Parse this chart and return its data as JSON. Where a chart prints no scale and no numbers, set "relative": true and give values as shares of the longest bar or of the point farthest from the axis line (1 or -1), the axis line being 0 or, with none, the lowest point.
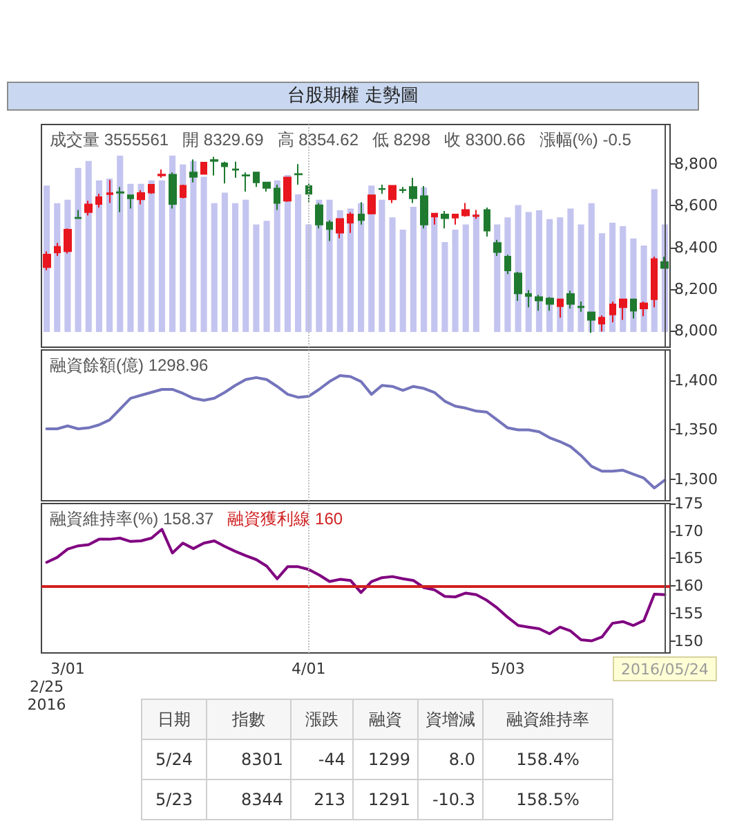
{
  "chart_data": [
    {
      "type": "bar",
      "relative": true,
      "title": "台股期權 走勢圖",
      "categories": [
        "2/25\n2016",
        null,
        "3/01",
        null,
        null,
        null,
        null,
        null,
        null,
        null,
        null,
        null,
        null,
        null,
        null,
        null,
        null,
        null,
        null,
        null,
        null,
        null,
        null,
        null,
        null,
        "4/01",
        null,
        null,
        null,
        null,
        null,
        null,
        null,
        null,
        null,
        null,
        null,
        null,
        null,
        null,
        null,
        null,
        null,
        null,
        "5/03",
        null,
        null,
        null,
        null,
        null,
        null,
        null,
        null,
        null,
        null,
        null,
        null,
        null,
        null,
        "2016/05/24"
      ],
      "color": "#c4c4f0",
      "values": [
        0.83,
        0.73,
        0.75,
        0.93,
        0.97,
        0.86,
        0.87,
        1,
        0.84,
        0.84,
        0.86,
        0.86,
        1,
        0.95,
        0.97,
        0.88,
        0.73,
        0.79,
        0.73,
        0.75,
        0.61,
        0.63,
        0.86,
        0.89,
        0.78,
        0.61,
        0.75,
        0.75,
        0.69,
        0.7,
        0.73,
        0.83,
        0.75,
        0.65,
        0.58,
        0.71,
        0.82,
        0.65,
        0.51,
        0.58,
        0.61,
        0.67,
        null,
        0.61,
        0.65,
        0.72,
        0.68,
        0.69,
        0.64,
        0.65,
        0.7,
        0.61,
        0.73,
        0.56,
        0.62,
        0.6,
        0.53,
        0.49,
        0.81,
        0.61
      ],
      "tick_labels": false
    },
    {
      "type": "candlestick",
      "annotations": [
        "成交量 3555561",
        "開 8329.69",
        "高 8354.62",
        "低 8298",
        "收 8300.66",
        "漲幅(%) -0.5"
      ],
      "categories": [
        "2/25\n2016",
        null,
        "3/01",
        null,
        null,
        null,
        null,
        null,
        null,
        null,
        null,
        null,
        null,
        null,
        null,
        null,
        null,
        null,
        null,
        null,
        null,
        null,
        null,
        null,
        null,
        "4/01",
        null,
        null,
        null,
        null,
        null,
        null,
        null,
        null,
        null,
        null,
        null,
        null,
        null,
        null,
        null,
        null,
        null,
        null,
        "5/03",
        null,
        null,
        null,
        null,
        null,
        null,
        null,
        null,
        null,
        null,
        null,
        null,
        null,
        null,
        "2016/05/24"
      ],
      "ohlc": [
        [
          8305,
          8380,
          8290,
          8365
        ],
        [
          8375,
          8421,
          8359,
          8403
        ],
        [
          8381,
          8491,
          8370,
          8485
        ],
        [
          8542,
          8580,
          8538,
          8540
        ],
        [
          8569,
          8624,
          8553,
          8606
        ],
        [
          8608,
          8657,
          8591,
          8641
        ],
        [
          8655,
          8723,
          8613,
          8660
        ],
        [
          8665,
          8690,
          8569,
          8662
        ],
        [
          8650,
          8652,
          8586,
          8635
        ],
        [
          8630,
          8674,
          8606,
          8661
        ],
        [
          8663,
          8701,
          8657,
          8701
        ],
        [
          8745,
          8774,
          8734,
          8750
        ],
        [
          8749,
          8760,
          8586,
          8608
        ],
        [
          8641,
          8701,
          8635,
          8696
        ],
        [
          8760,
          8822,
          8712,
          8738
        ],
        [
          8752,
          8810,
          8750,
          8807
        ],
        [
          8820,
          8835,
          8745,
          8815
        ],
        [
          8804,
          8811,
          8707,
          8789
        ],
        [
          8775,
          8811,
          8734,
          8772
        ],
        [
          8747,
          8760,
          8668,
          8744
        ],
        [
          8760,
          8760,
          8690,
          8712
        ],
        [
          8712,
          8712,
          8668,
          8685
        ],
        [
          8683,
          8701,
          8580,
          8613
        ],
        [
          8624,
          8736,
          8619,
          8736
        ],
        [
          8752,
          8800,
          8701,
          8750
        ],
        [
          8694,
          8712,
          8619,
          8657
        ],
        [
          8602,
          8613,
          8491,
          8509
        ],
        [
          8520,
          8531,
          8430,
          8487
        ],
        [
          8470,
          8536,
          8443,
          8536
        ],
        [
          8518,
          8569,
          8469,
          8558
        ],
        [
          8558,
          8617,
          8509,
          8531
        ],
        [
          8562,
          8650,
          8558,
          8650
        ],
        [
          8681,
          8701,
          8657,
          8679
        ],
        [
          8630,
          8696,
          8613,
          8696
        ],
        [
          8676,
          8690,
          8660,
          8674
        ],
        [
          8690,
          8734,
          8613,
          8635
        ],
        [
          8646,
          8694,
          8491,
          8509
        ],
        [
          8547,
          8562,
          8509,
          8562
        ],
        [
          8558,
          8575,
          8491,
          8540
        ],
        [
          8542,
          8558,
          8509,
          8558
        ],
        [
          8553,
          8613,
          8547,
          8580
        ],
        [
          8550,
          8580,
          8536,
          8553
        ],
        [
          8580,
          8591,
          8452,
          8480
        ],
        [
          8421,
          8436,
          8359,
          8377
        ],
        [
          8355,
          8364,
          8271,
          8289
        ],
        [
          8275,
          8282,
          8143,
          8178
        ],
        [
          8176,
          8194,
          8112,
          8166
        ],
        [
          8161,
          8172,
          8095,
          8144
        ],
        [
          8154,
          8161,
          8095,
          8128
        ],
        [
          8117,
          8150,
          8062,
          8150
        ],
        [
          8176,
          8192,
          8106,
          8128
        ],
        [
          8115,
          8139,
          8090,
          8112
        ],
        [
          8088,
          8088,
          7989,
          8051
        ],
        [
          8033,
          8073,
          7996,
          8062
        ],
        [
          8077,
          8139,
          8040,
          8126
        ],
        [
          8112,
          8150,
          8051,
          8150
        ],
        [
          8150,
          8150,
          8058,
          8095
        ],
        [
          8106,
          8139,
          8069,
          8131
        ],
        [
          8150,
          8355,
          8112,
          8344
        ],
        [
          8329.69,
          8354.62,
          8298,
          8300.66
        ]
      ],
      "colors": [
        "#e8161e",
        "#e8161e",
        "#e8161e",
        "#1f7a2f",
        "#e8161e",
        "#e8161e",
        "#e8161e",
        "#1f7a2f",
        "#1f7a2f",
        "#e8161e",
        "#e8161e",
        "#e8161e",
        "#1f7a2f",
        "#e8161e",
        "#1f7a2f",
        "#e8161e",
        "#1f7a2f",
        "#1f7a2f",
        "#1f7a2f",
        "#1f7a2f",
        "#1f7a2f",
        "#1f7a2f",
        "#1f7a2f",
        "#e8161e",
        "#1f7a2f",
        "#1f7a2f",
        "#1f7a2f",
        "#1f7a2f",
        "#e8161e",
        "#e8161e",
        "#1f7a2f",
        "#e8161e",
        "#1f7a2f",
        "#e8161e",
        "#1f7a2f",
        "#1f7a2f",
        "#1f7a2f",
        "#e8161e",
        "#1f7a2f",
        "#e8161e",
        "#e8161e",
        "#e8161e",
        "#1f7a2f",
        "#1f7a2f",
        "#1f7a2f",
        "#1f7a2f",
        "#1f7a2f",
        "#1f7a2f",
        "#1f7a2f",
        "#e8161e",
        "#1f7a2f",
        "#1f7a2f",
        "#1f7a2f",
        "#e8161e",
        "#e8161e",
        "#e8161e",
        "#1f7a2f",
        "#e8161e",
        "#e8161e",
        "#1f7a2f"
      ],
      "ylim": [
        7920,
        8990
      ],
      "yticks": [
        {
          "value": 8000,
          "label": "8,000"
        },
        {
          "value": 8200,
          "label": "8,200"
        },
        {
          "value": 8400,
          "label": "8,400"
        },
        {
          "value": 8600,
          "label": "8,600"
        },
        {
          "value": 8800,
          "label": "8,800"
        }
      ],
      "ref_lines": [
        {
          "axis": "x",
          "value": "4/01",
          "color": "#c0c0c0",
          "line_style": "dotted"
        },
        {
          "axis": "x",
          "value": "2016/05/24",
          "color": "#505050"
        }
      ],
      "tick_labels": "y"
    },
    {
      "type": "line",
      "annotations": [
        "融資餘額(億) 1298.96"
      ],
      "categories": [
        "2/25\n2016",
        null,
        "3/01",
        null,
        null,
        null,
        null,
        null,
        null,
        null,
        null,
        null,
        null,
        null,
        null,
        null,
        null,
        null,
        null,
        null,
        null,
        null,
        null,
        null,
        null,
        "4/01",
        null,
        null,
        null,
        null,
        null,
        null,
        null,
        null,
        null,
        null,
        null,
        null,
        null,
        null,
        null,
        null,
        null,
        null,
        "5/03",
        null,
        null,
        null,
        null,
        null,
        null,
        null,
        null,
        null,
        null,
        null,
        null,
        null,
        null,
        "2016/05/24"
      ],
      "series": [
        {
          "color": "#7474bc",
          "values": [
            1351,
            1351,
            1354,
            1351,
            1352,
            1355,
            1360,
            1371,
            1382,
            1385,
            1388,
            1391,
            1391,
            1387,
            1382,
            1380,
            1382,
            1388,
            1395,
            1401,
            1403,
            1401,
            1394,
            1386,
            1383,
            1384,
            1391,
            1399,
            1405,
            1404,
            1399,
            1386,
            1395,
            1394,
            1390,
            1394,
            1392,
            1388,
            1379,
            1374,
            1372,
            1369,
            1368,
            1360,
            1352,
            1350,
            1350,
            1348,
            1342,
            1338,
            1333,
            1324,
            1313,
            1308,
            1308,
            1309,
            1305,
            1301,
            1291,
            1299
          ]
        }
      ],
      "ylim": [
        1278,
        1431
      ],
      "yticks": [
        {
          "value": 1300,
          "label": "1,300"
        },
        {
          "value": 1350,
          "label": "1,350"
        },
        {
          "value": 1400,
          "label": "1,400"
        }
      ],
      "ref_lines": [
        {
          "axis": "x",
          "value": "4/01",
          "color": "#c0c0c0",
          "line_style": "dotted"
        },
        {
          "axis": "x",
          "value": "2016/05/24",
          "color": "#505050"
        }
      ],
      "tick_labels": "y"
    },
    {
      "type": "line",
      "annotations": [
        "融資維持率(%) 158.37"
      ],
      "categories": [
        "2/25\n2016",
        null,
        "3/01",
        null,
        null,
        null,
        null,
        null,
        null,
        null,
        null,
        null,
        null,
        null,
        null,
        null,
        null,
        null,
        null,
        null,
        null,
        null,
        null,
        null,
        null,
        "4/01",
        null,
        null,
        null,
        null,
        null,
        null,
        null,
        null,
        null,
        null,
        null,
        null,
        null,
        null,
        null,
        null,
        null,
        null,
        "5/03",
        null,
        null,
        null,
        null,
        null,
        null,
        null,
        null,
        null,
        null,
        null,
        null,
        null,
        null,
        "2016/05/24"
      ],
      "series": [
        {
          "color": "#800080",
          "values": [
            164.3,
            165.2,
            166.7,
            167.3,
            167.5,
            168.5,
            168.5,
            168.7,
            168.1,
            168.2,
            168.7,
            170.3,
            166.0,
            167.8,
            166.8,
            167.8,
            168.2,
            167.2,
            166.3,
            165.5,
            164.8,
            163.6,
            161.3,
            163.5,
            163.5,
            163.0,
            162.0,
            160.8,
            161.2,
            161.0,
            158.8,
            160.8,
            161.5,
            161.7,
            161.3,
            161.0,
            159.7,
            159.3,
            158.1,
            158.0,
            158.7,
            158.4,
            157.4,
            156.0,
            154.3,
            152.8,
            152.5,
            152.2,
            151.3,
            152.5,
            151.8,
            150.2,
            150.0,
            150.7,
            153.2,
            153.5,
            152.8,
            153.7,
            158.5,
            158.4
          ]
        }
      ],
      "ylim": [
        147.8,
        175
      ],
      "yticks": [
        150,
        155,
        160,
        165,
        170,
        175
      ],
      "ref_lines": [
        {
          "axis": "y",
          "value": 160,
          "label": "融資獲利線 160",
          "color": "#d02020"
        },
        {
          "axis": "x",
          "value": "4/01",
          "color": "#c0c0c0",
          "line_style": "dotted"
        },
        {
          "axis": "x",
          "value": "2016/05/24",
          "color": "#505050"
        }
      ]
    },
    {
      "type": "other",
      "annotations": [
        "日期",
        "指數",
        "漲跌",
        "融資",
        "資增減",
        "融資維持率",
        "5/24",
        "8301",
        "-44",
        "1299",
        "8.0",
        "158.4%",
        "5/23",
        "8344",
        "213",
        "1291",
        "-10.3",
        "158.5%"
      ]
    }
  ]
}
